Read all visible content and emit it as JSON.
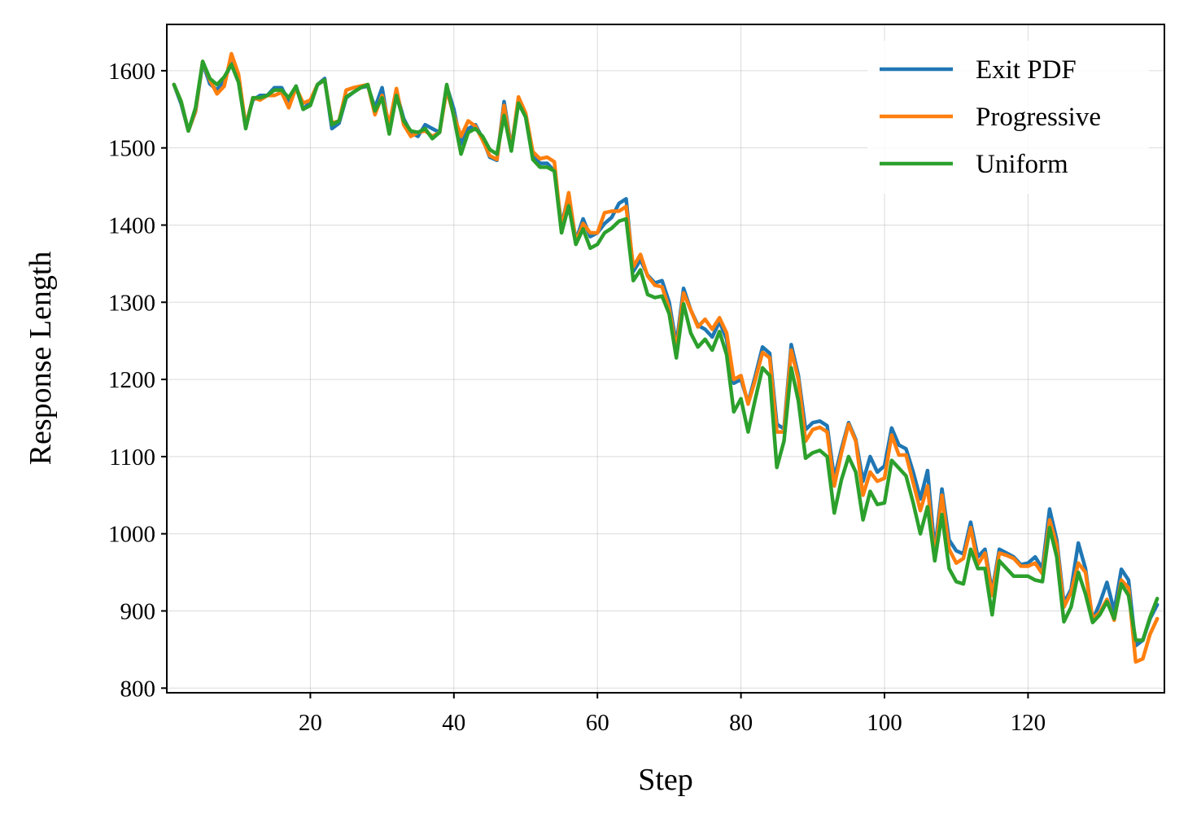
{
  "chart_data": {
    "type": "line",
    "title": "",
    "xlabel": "Step",
    "ylabel": "Response Length",
    "xlim": [
      0,
      139
    ],
    "ylim": [
      794,
      1660
    ],
    "xticks": [
      20,
      40,
      60,
      80,
      100,
      120
    ],
    "yticks": [
      800,
      900,
      1000,
      1100,
      1200,
      1300,
      1400,
      1500,
      1600
    ],
    "grid": true,
    "legend_position": "upper-right",
    "x_start": 1,
    "series": [
      {
        "name": "Exit PDF",
        "color": "#1f77b4",
        "values": [
          1582,
          1557,
          1522,
          1547,
          1610,
          1583,
          1575,
          1588,
          1610,
          1585,
          1530,
          1562,
          1568,
          1568,
          1578,
          1578,
          1560,
          1580,
          1550,
          1560,
          1582,
          1590,
          1525,
          1532,
          1565,
          1572,
          1578,
          1580,
          1552,
          1578,
          1522,
          1572,
          1538,
          1520,
          1515,
          1530,
          1525,
          1520,
          1580,
          1550,
          1505,
          1525,
          1530,
          1512,
          1488,
          1484,
          1560,
          1500,
          1562,
          1540,
          1490,
          1480,
          1480,
          1470,
          1400,
          1440,
          1380,
          1408,
          1385,
          1390,
          1402,
          1410,
          1428,
          1434,
          1340,
          1355,
          1335,
          1325,
          1328,
          1300,
          1245,
          1318,
          1290,
          1270,
          1265,
          1255,
          1275,
          1252,
          1195,
          1200,
          1170,
          1205,
          1242,
          1234,
          1142,
          1136,
          1245,
          1205,
          1135,
          1144,
          1146,
          1140,
          1072,
          1110,
          1144,
          1122,
          1068,
          1100,
          1080,
          1088,
          1137,
          1115,
          1110,
          1080,
          1045,
          1082,
          978,
          1058,
          992,
          978,
          974,
          1015,
          970,
          980,
          925,
          980,
          975,
          970,
          960,
          962,
          970,
          955,
          1032,
          992,
          910,
          928,
          988,
          955,
          888,
          910,
          937,
          900,
          954,
          940,
          855,
          862,
          890,
          908
        ]
      },
      {
        "name": "Progressive",
        "color": "#ff7f0e",
        "values": [
          1582,
          1560,
          1522,
          1548,
          1612,
          1588,
          1570,
          1580,
          1622,
          1595,
          1528,
          1565,
          1562,
          1568,
          1568,
          1572,
          1552,
          1578,
          1558,
          1562,
          1582,
          1588,
          1532,
          1535,
          1575,
          1578,
          1580,
          1582,
          1543,
          1568,
          1530,
          1577,
          1530,
          1515,
          1520,
          1522,
          1515,
          1520,
          1575,
          1542,
          1515,
          1535,
          1528,
          1510,
          1490,
          1485,
          1555,
          1498,
          1566,
          1545,
          1495,
          1486,
          1488,
          1482,
          1394,
          1442,
          1378,
          1402,
          1390,
          1390,
          1416,
          1418,
          1418,
          1424,
          1346,
          1362,
          1334,
          1322,
          1320,
          1292,
          1238,
          1312,
          1290,
          1268,
          1278,
          1265,
          1280,
          1260,
          1200,
          1205,
          1168,
          1200,
          1235,
          1228,
          1132,
          1132,
          1238,
          1200,
          1120,
          1135,
          1138,
          1132,
          1062,
          1105,
          1142,
          1120,
          1050,
          1080,
          1068,
          1072,
          1128,
          1102,
          1102,
          1066,
          1030,
          1062,
          968,
          1050,
          980,
          962,
          968,
          1008,
          960,
          975,
          920,
          975,
          972,
          968,
          958,
          958,
          962,
          948,
          1018,
          985,
          905,
          924,
          962,
          950,
          890,
          898,
          915,
          888,
          940,
          930,
          834,
          838,
          870,
          890
        ]
      },
      {
        "name": "Uniform",
        "color": "#2ca02c",
        "values": [
          1582,
          1560,
          1522,
          1552,
          1612,
          1590,
          1582,
          1592,
          1608,
          1585,
          1525,
          1565,
          1565,
          1568,
          1575,
          1575,
          1565,
          1580,
          1550,
          1555,
          1582,
          1588,
          1530,
          1535,
          1566,
          1572,
          1578,
          1582,
          1548,
          1565,
          1518,
          1568,
          1535,
          1522,
          1520,
          1525,
          1512,
          1520,
          1582,
          1540,
          1492,
          1520,
          1525,
          1515,
          1498,
          1492,
          1542,
          1496,
          1558,
          1540,
          1485,
          1475,
          1475,
          1470,
          1390,
          1425,
          1375,
          1395,
          1370,
          1375,
          1390,
          1396,
          1405,
          1408,
          1328,
          1342,
          1310,
          1306,
          1308,
          1285,
          1228,
          1298,
          1260,
          1242,
          1252,
          1238,
          1262,
          1232,
          1158,
          1175,
          1132,
          1175,
          1215,
          1205,
          1086,
          1120,
          1215,
          1172,
          1098,
          1105,
          1108,
          1100,
          1027,
          1070,
          1100,
          1080,
          1018,
          1055,
          1038,
          1040,
          1095,
          1085,
          1075,
          1040,
          1000,
          1035,
          965,
          1025,
          955,
          938,
          935,
          980,
          955,
          955,
          895,
          965,
          955,
          945,
          945,
          945,
          940,
          938,
          1008,
          970,
          886,
          905,
          950,
          922,
          885,
          895,
          912,
          890,
          935,
          920,
          862,
          862,
          892,
          916
        ]
      }
    ]
  }
}
